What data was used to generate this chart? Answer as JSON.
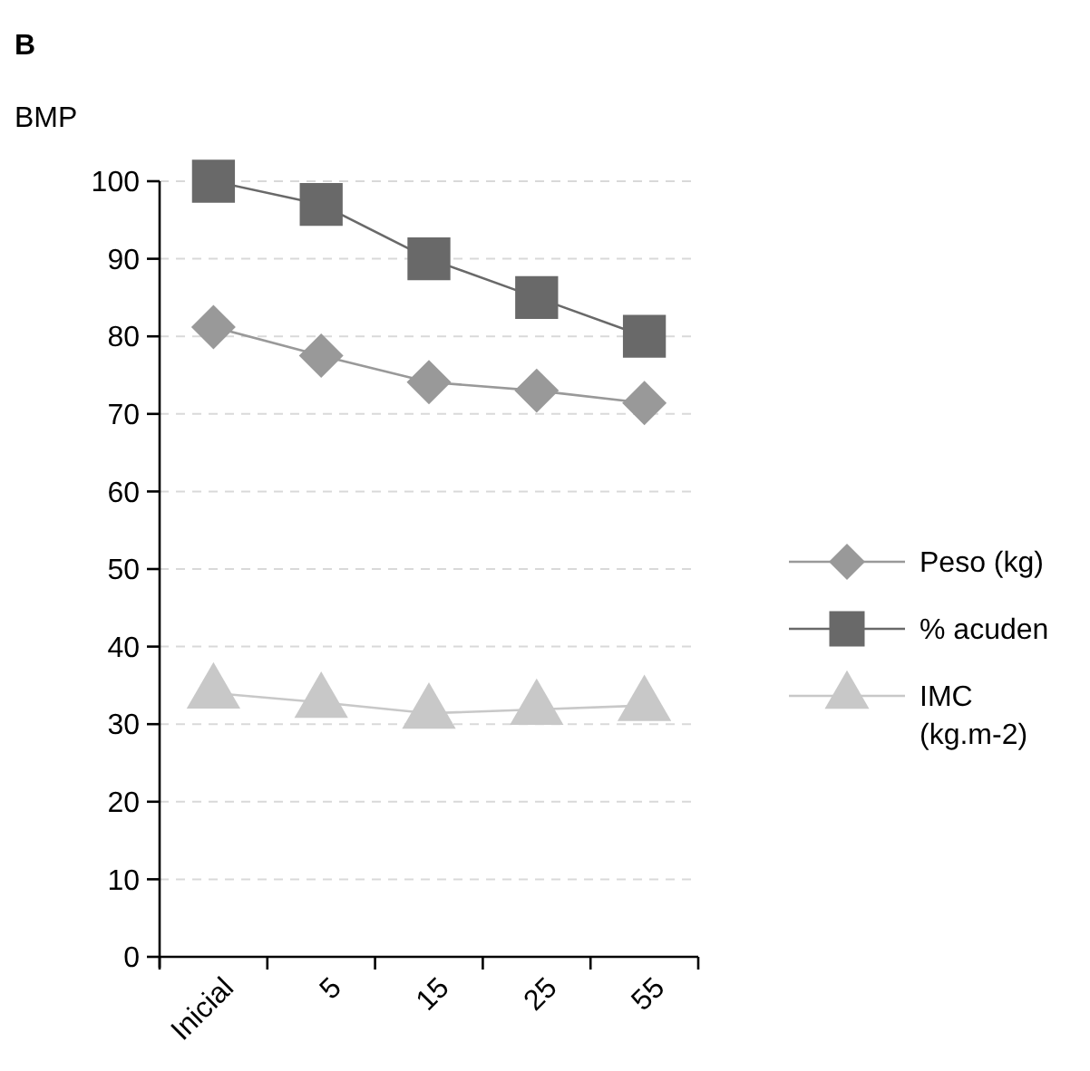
{
  "chart_data": {
    "type": "line",
    "title": "B",
    "ylabel": "BMP",
    "categories": [
      "Inicial",
      "5",
      "15",
      "25",
      "55"
    ],
    "series": [
      {
        "name": "Peso (kg)",
        "color": "#999999",
        "marker": "diamond",
        "values": [
          81.2,
          77.5,
          74.1,
          73,
          71.4
        ]
      },
      {
        "name": "% acuden",
        "color": "#696969",
        "marker": "square",
        "values": [
          100,
          97,
          90,
          85,
          80
        ]
      },
      {
        "name": "IMC (kg.m-2)",
        "color": "#c8c8c8",
        "marker": "triangle",
        "values": [
          34,
          32.8,
          31.4,
          31.9,
          32.4
        ]
      }
    ],
    "ylim": [
      0,
      100
    ],
    "yticks": [
      0,
      10,
      20,
      30,
      40,
      50,
      60,
      70,
      80,
      90,
      100
    ],
    "grid": "y",
    "legend": "right"
  }
}
